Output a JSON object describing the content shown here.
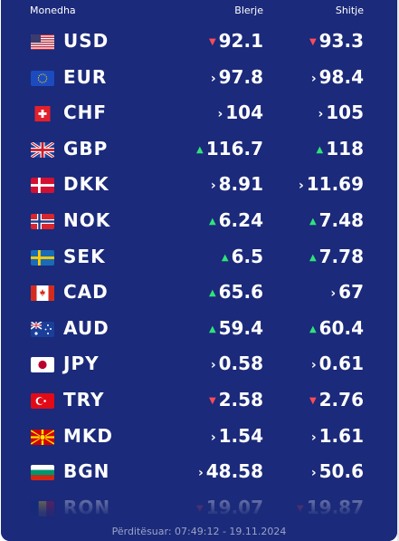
{
  "header": {
    "currency": "Monedha",
    "buy": "Blerje",
    "sell": "Shitje"
  },
  "rates": [
    {
      "code": "USD",
      "flag": "us-flag-icon",
      "buy": "92.1",
      "buy_trend": "down",
      "sell": "93.3",
      "sell_trend": "down"
    },
    {
      "code": "EUR",
      "flag": "eu-flag-icon",
      "buy": "97.8",
      "buy_trend": "flat",
      "sell": "98.4",
      "sell_trend": "flat"
    },
    {
      "code": "CHF",
      "flag": "ch-flag-icon",
      "buy": "104",
      "buy_trend": "flat",
      "sell": "105",
      "sell_trend": "flat"
    },
    {
      "code": "GBP",
      "flag": "gb-flag-icon",
      "buy": "116.7",
      "buy_trend": "up",
      "sell": "118",
      "sell_trend": "up"
    },
    {
      "code": "DKK",
      "flag": "dk-flag-icon",
      "buy": "8.91",
      "buy_trend": "flat",
      "sell": "11.69",
      "sell_trend": "flat"
    },
    {
      "code": "NOK",
      "flag": "no-flag-icon",
      "buy": "6.24",
      "buy_trend": "up",
      "sell": "7.48",
      "sell_trend": "up"
    },
    {
      "code": "SEK",
      "flag": "se-flag-icon",
      "buy": "6.5",
      "buy_trend": "up",
      "sell": "7.78",
      "sell_trend": "up"
    },
    {
      "code": "CAD",
      "flag": "ca-flag-icon",
      "buy": "65.6",
      "buy_trend": "up",
      "sell": "67",
      "sell_trend": "flat"
    },
    {
      "code": "AUD",
      "flag": "au-flag-icon",
      "buy": "59.4",
      "buy_trend": "up",
      "sell": "60.4",
      "sell_trend": "up"
    },
    {
      "code": "JPY",
      "flag": "jp-flag-icon",
      "buy": "0.58",
      "buy_trend": "flat",
      "sell": "0.61",
      "sell_trend": "flat"
    },
    {
      "code": "TRY",
      "flag": "tr-flag-icon",
      "buy": "2.58",
      "buy_trend": "down",
      "sell": "2.76",
      "sell_trend": "down"
    },
    {
      "code": "MKD",
      "flag": "mk-flag-icon",
      "buy": "1.54",
      "buy_trend": "flat",
      "sell": "1.61",
      "sell_trend": "flat"
    },
    {
      "code": "BGN",
      "flag": "bg-flag-icon",
      "buy": "48.58",
      "buy_trend": "flat",
      "sell": "50.6",
      "sell_trend": "flat"
    },
    {
      "code": "RON",
      "flag": "ro-flag-icon",
      "buy": "19.07",
      "buy_trend": "down",
      "sell": "19.87",
      "sell_trend": "down"
    }
  ],
  "footer": {
    "updated": "Përditësuar: 07:49:12 - 19.11.2024"
  },
  "colors": {
    "panel": "#1b2a7a",
    "down": "#ff4b57",
    "up": "#2fe37a",
    "text": "#ffffff"
  }
}
